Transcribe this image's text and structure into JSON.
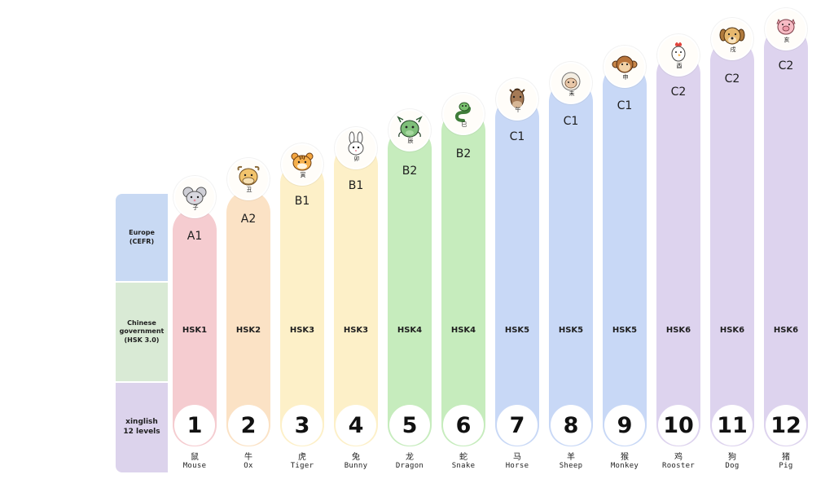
{
  "row_labels": {
    "cefr": "Europe\n(CEFR)",
    "hsk": "Chinese\ngovernment\n(HSK 3.0)",
    "xinglish": "xinglish\n12 levels"
  },
  "colors": {
    "red": "#f5ccd0",
    "orange": "#fbe2c5",
    "yellow": "#fdf0c8",
    "green": "#c6ecbd",
    "blue": "#c8d8f6",
    "purple": "#ddd3ee"
  },
  "levels": [
    {
      "num": "1",
      "cefr": "A1",
      "hsk": "HSK1",
      "cn": "鼠",
      "en": "Mouse",
      "branch": "子",
      "icon": "mouse-icon",
      "color": "#f5ccd0"
    },
    {
      "num": "2",
      "cefr": "A2",
      "hsk": "HSK2",
      "cn": "牛",
      "en": "Ox",
      "branch": "丑",
      "icon": "ox-icon",
      "color": "#fbe2c5"
    },
    {
      "num": "3",
      "cefr": "B1",
      "hsk": "HSK3",
      "cn": "虎",
      "en": "Tiger",
      "branch": "寅",
      "icon": "tiger-icon",
      "color": "#fdf0c8"
    },
    {
      "num": "4",
      "cefr": "B1",
      "hsk": "HSK3",
      "cn": "兔",
      "en": "Bunny",
      "branch": "卯",
      "icon": "bunny-icon",
      "color": "#fdf0c8"
    },
    {
      "num": "5",
      "cefr": "B2",
      "hsk": "HSK4",
      "cn": "龙",
      "en": "Dragon",
      "branch": "辰",
      "icon": "dragon-icon",
      "color": "#c6ecbd"
    },
    {
      "num": "6",
      "cefr": "B2",
      "hsk": "HSK4",
      "cn": "蛇",
      "en": "Snake",
      "branch": "巳",
      "icon": "snake-icon",
      "color": "#c6ecbd"
    },
    {
      "num": "7",
      "cefr": "C1",
      "hsk": "HSK5",
      "cn": "马",
      "en": "Horse",
      "branch": "午",
      "icon": "horse-icon",
      "color": "#c8d8f6"
    },
    {
      "num": "8",
      "cefr": "C1",
      "hsk": "HSK5",
      "cn": "羊",
      "en": "Sheep",
      "branch": "未",
      "icon": "sheep-icon",
      "color": "#c8d8f6"
    },
    {
      "num": "9",
      "cefr": "C1",
      "hsk": "HSK5",
      "cn": "猴",
      "en": "Monkey",
      "branch": "申",
      "icon": "monkey-icon",
      "color": "#c8d8f6"
    },
    {
      "num": "10",
      "cefr": "C2",
      "hsk": "HSK6",
      "cn": "鸡",
      "en": "Rooster",
      "branch": "酉",
      "icon": "rooster-icon",
      "color": "#ddd3ee"
    },
    {
      "num": "11",
      "cefr": "C2",
      "hsk": "HSK6",
      "cn": "狗",
      "en": "Dog",
      "branch": "戌",
      "icon": "dog-icon",
      "color": "#ddd3ee"
    },
    {
      "num": "12",
      "cefr": "C2",
      "hsk": "HSK6",
      "cn": "猪",
      "en": "Pig",
      "branch": "亥",
      "icon": "pig-icon",
      "color": "#ddd3ee"
    }
  ]
}
